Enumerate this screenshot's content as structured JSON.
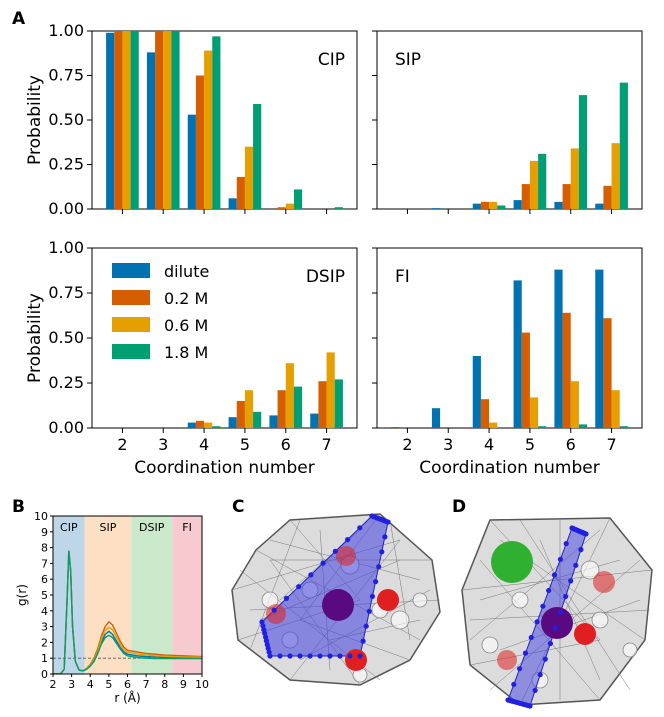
{
  "colors": {
    "dilute": "#0072b2",
    "c02": "#d55e00",
    "c06": "#e69f00",
    "c18": "#009e73",
    "cip_band": "#a8c8e0",
    "sip_band": "#fcd5b0",
    "dsip_band": "#b8e0b8",
    "fi_band": "#f4b8c0",
    "ion_red": "#e02020",
    "ion_purple": "#5a0a80",
    "ion_green": "#30b030",
    "plane_blue": "#4040e0"
  },
  "panel_labels": {
    "a": "A",
    "b": "B",
    "c": "C",
    "d": "D"
  },
  "chart_data": [
    {
      "type": "bar",
      "panel": "A",
      "title": "CIP",
      "categories": [
        "2",
        "3",
        "4",
        "5",
        "6",
        "7"
      ],
      "series": [
        {
          "name": "dilute",
          "values": [
            0.99,
            0.88,
            0.53,
            0.06,
            0.0,
            0.0
          ]
        },
        {
          "name": "0.2 M",
          "values": [
            1.0,
            1.0,
            0.75,
            0.18,
            0.01,
            0.0
          ]
        },
        {
          "name": "0.6 M",
          "values": [
            1.0,
            1.0,
            0.89,
            0.35,
            0.03,
            0.0
          ]
        },
        {
          "name": "1.8 M",
          "values": [
            1.0,
            1.0,
            0.97,
            0.59,
            0.11,
            0.01
          ]
        }
      ],
      "ylabel": "Probability",
      "ylim": [
        0,
        1
      ],
      "yticks": [
        "0.00",
        "0.25",
        "0.50",
        "0.75",
        "1.00"
      ]
    },
    {
      "type": "bar",
      "panel": "A",
      "title": "SIP",
      "categories": [
        "2",
        "3",
        "4",
        "5",
        "6",
        "7"
      ],
      "series": [
        {
          "name": "dilute",
          "values": [
            0.0,
            0.005,
            0.03,
            0.05,
            0.04,
            0.03
          ]
        },
        {
          "name": "0.2 M",
          "values": [
            0.0,
            0.0,
            0.04,
            0.14,
            0.14,
            0.13
          ]
        },
        {
          "name": "0.6 M",
          "values": [
            0.0,
            0.0,
            0.04,
            0.27,
            0.34,
            0.37
          ]
        },
        {
          "name": "1.8 M",
          "values": [
            0.0,
            0.0,
            0.02,
            0.31,
            0.64,
            0.71
          ]
        }
      ],
      "ylim": [
        0,
        1
      ]
    },
    {
      "type": "bar",
      "panel": "A",
      "title": "DSIP",
      "categories": [
        "2",
        "3",
        "4",
        "5",
        "6",
        "7"
      ],
      "series": [
        {
          "name": "dilute",
          "values": [
            0.0,
            0.0,
            0.03,
            0.06,
            0.07,
            0.08
          ]
        },
        {
          "name": "0.2 M",
          "values": [
            0.0,
            0.0,
            0.04,
            0.15,
            0.21,
            0.26
          ]
        },
        {
          "name": "0.6 M",
          "values": [
            0.0,
            0.0,
            0.03,
            0.21,
            0.36,
            0.42
          ]
        },
        {
          "name": "1.8 M",
          "values": [
            0.0,
            0.0,
            0.01,
            0.09,
            0.23,
            0.27
          ]
        }
      ],
      "xlabel": "Coordination number",
      "ylabel": "Probability",
      "ylim": [
        0,
        1
      ],
      "yticks": [
        "0.00",
        "0.25",
        "0.50",
        "0.75",
        "1.00"
      ],
      "xticks": [
        "2",
        "3",
        "4",
        "5",
        "6",
        "7"
      ],
      "legend": [
        "dilute",
        "0.2 M",
        "0.6 M",
        "1.8 M"
      ]
    },
    {
      "type": "bar",
      "panel": "A",
      "title": "FI",
      "categories": [
        "2",
        "3",
        "4",
        "5",
        "6",
        "7"
      ],
      "series": [
        {
          "name": "dilute",
          "values": [
            0.005,
            0.11,
            0.4,
            0.82,
            0.88,
            0.88
          ]
        },
        {
          "name": "0.2 M",
          "values": [
            0.0,
            0.0,
            0.16,
            0.53,
            0.64,
            0.61
          ]
        },
        {
          "name": "0.6 M",
          "values": [
            0.0,
            0.0,
            0.03,
            0.17,
            0.26,
            0.21
          ]
        },
        {
          "name": "1.8 M",
          "values": [
            0.0,
            0.0,
            0.0,
            0.01,
            0.02,
            0.01
          ]
        }
      ],
      "xlabel": "Coordination number",
      "ylim": [
        0,
        1
      ],
      "xticks": [
        "2",
        "3",
        "4",
        "5",
        "6",
        "7"
      ]
    },
    {
      "type": "line",
      "panel": "B",
      "xlabel": "r (Å)",
      "ylabel": "g(r)",
      "xlim": [
        2,
        10
      ],
      "ylim": [
        0,
        10
      ],
      "xticks": [
        "2",
        "3",
        "4",
        "5",
        "6",
        "7",
        "8",
        "9",
        "10"
      ],
      "yticks": [
        "0",
        "1",
        "2",
        "3",
        "4",
        "5",
        "6",
        "7",
        "8",
        "9",
        "10"
      ],
      "regions": [
        {
          "label": "CIP",
          "from": 2.0,
          "to": 3.7
        },
        {
          "label": "SIP",
          "from": 3.7,
          "to": 6.2
        },
        {
          "label": "DSIP",
          "from": 6.2,
          "to": 8.4
        },
        {
          "label": "FI",
          "from": 8.4,
          "to": 10.0
        }
      ],
      "reference_line": 1,
      "series": [
        {
          "name": "dilute",
          "x": [
            2.0,
            2.4,
            2.6,
            2.75,
            2.85,
            2.95,
            3.05,
            3.2,
            3.4,
            3.6,
            3.8,
            4.0,
            4.2,
            4.4,
            4.6,
            4.8,
            5.0,
            5.2,
            5.4,
            5.6,
            5.8,
            6.0,
            6.5,
            7.0,
            7.5,
            8.0,
            9.0,
            10.0
          ],
          "y": [
            0,
            0,
            0.3,
            4.5,
            7.8,
            6.5,
            3.0,
            0.8,
            0.25,
            0.2,
            0.3,
            0.5,
            0.8,
            1.3,
            2.0,
            2.5,
            2.7,
            2.5,
            2.1,
            1.7,
            1.4,
            1.25,
            1.15,
            1.1,
            1.08,
            1.05,
            1.03,
            1.02
          ]
        },
        {
          "name": "0.2 M",
          "x": [
            2.0,
            2.4,
            2.6,
            2.75,
            2.85,
            2.95,
            3.05,
            3.2,
            3.4,
            3.6,
            3.8,
            4.0,
            4.2,
            4.4,
            4.6,
            4.8,
            5.0,
            5.2,
            5.4,
            5.6,
            5.8,
            6.0,
            6.5,
            7.0,
            7.5,
            8.0,
            9.0,
            10.0
          ],
          "y": [
            0,
            0,
            0.3,
            4.5,
            7.8,
            6.5,
            3.0,
            0.8,
            0.25,
            0.2,
            0.35,
            0.6,
            1.0,
            1.6,
            2.4,
            3.0,
            3.3,
            3.1,
            2.6,
            2.1,
            1.7,
            1.5,
            1.4,
            1.3,
            1.25,
            1.2,
            1.15,
            1.1
          ]
        },
        {
          "name": "0.6 M",
          "x": [
            2.0,
            2.4,
            2.6,
            2.75,
            2.85,
            2.95,
            3.05,
            3.2,
            3.4,
            3.6,
            3.8,
            4.0,
            4.2,
            4.4,
            4.6,
            4.8,
            5.0,
            5.2,
            5.4,
            5.6,
            5.8,
            6.0,
            6.5,
            7.0,
            7.5,
            8.0,
            9.0,
            10.0
          ],
          "y": [
            0,
            0,
            0.3,
            4.5,
            7.8,
            6.5,
            3.0,
            0.8,
            0.25,
            0.2,
            0.32,
            0.55,
            0.9,
            1.45,
            2.2,
            2.75,
            2.95,
            2.8,
            2.35,
            1.9,
            1.55,
            1.38,
            1.28,
            1.2,
            1.15,
            1.12,
            1.08,
            1.06
          ]
        },
        {
          "name": "1.8 M",
          "x": [
            2.0,
            2.4,
            2.6,
            2.75,
            2.85,
            2.95,
            3.05,
            3.2,
            3.4,
            3.6,
            3.8,
            4.0,
            4.2,
            4.4,
            4.6,
            4.8,
            5.0,
            5.2,
            5.4,
            5.6,
            5.8,
            6.0,
            6.5,
            7.0,
            7.5,
            8.0,
            9.0,
            10.0
          ],
          "y": [
            0,
            0,
            0.3,
            4.5,
            7.8,
            6.5,
            3.0,
            0.8,
            0.25,
            0.2,
            0.3,
            0.5,
            0.8,
            1.3,
            1.9,
            2.3,
            2.45,
            2.3,
            1.95,
            1.6,
            1.3,
            1.15,
            1.05,
            1.0,
            0.98,
            0.98,
            0.98,
            0.98
          ]
        }
      ]
    }
  ]
}
